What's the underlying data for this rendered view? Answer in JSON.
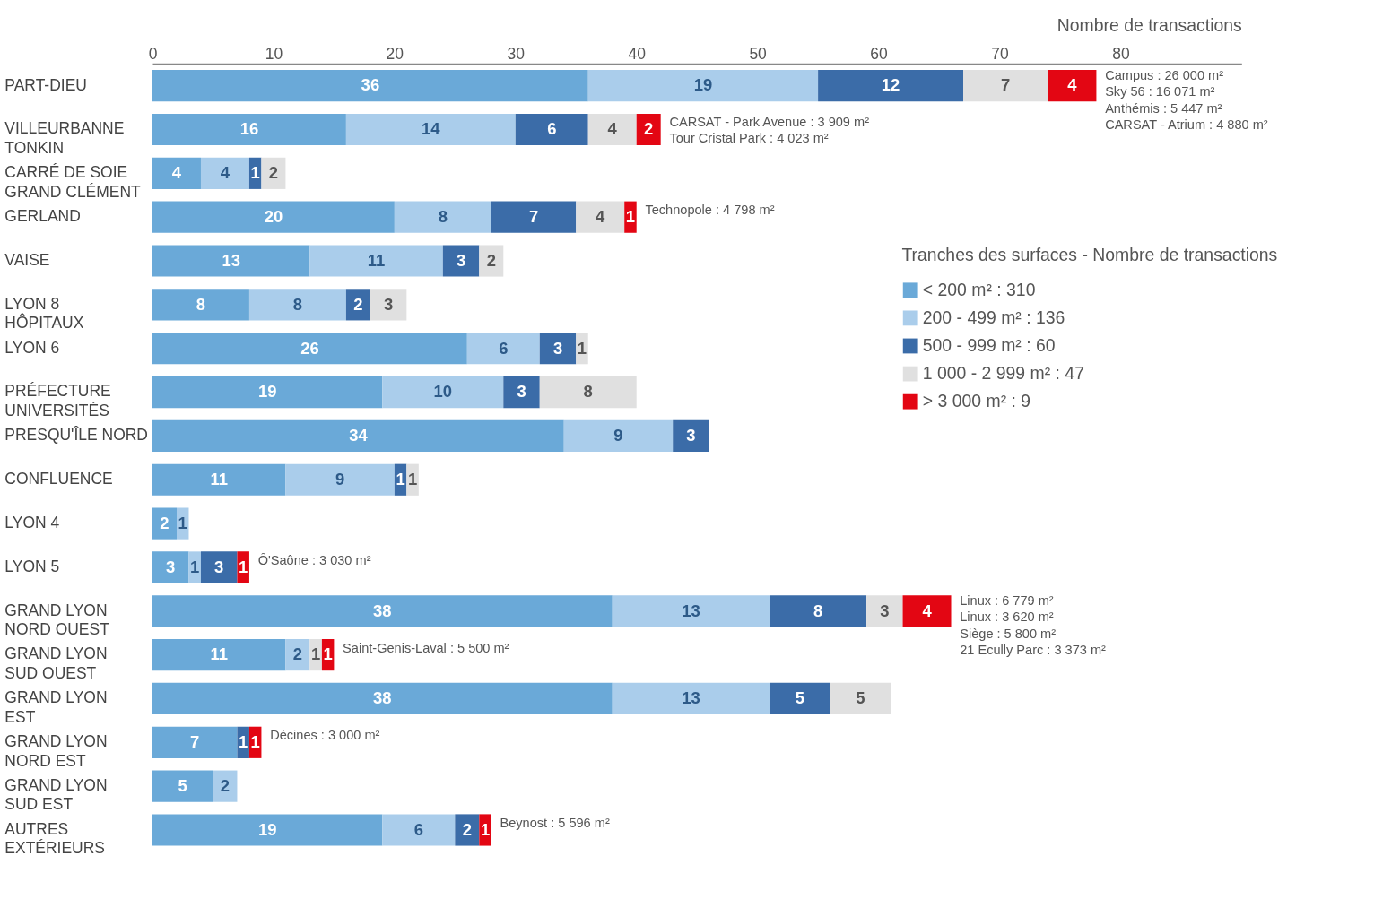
{
  "chart_data": {
    "type": "bar",
    "orientation": "horizontal",
    "stacked": true,
    "data_labels": true,
    "legend": "right",
    "grid": false,
    "xlabel": "Nombre de transactions",
    "legend_title": "Tranches des surfaces - Nombre de transactions",
    "xlim": [
      0,
      90
    ],
    "xticks": [
      0,
      10,
      20,
      30,
      40,
      50,
      60,
      70,
      80
    ],
    "categories": [
      "PART-DIEU",
      "VILLEURBANNE\nTONKIN",
      "CARRÉ DE SOIE\nGRAND CLÉMENT",
      "GERLAND",
      "VAISE",
      "LYON 8\nHÔPITAUX",
      "LYON 6",
      "PRÉFECTURE\nUNIVERSITÉS",
      "PRESQU'ÎLE NORD",
      "CONFLUENCE",
      "LYON 4",
      "LYON 5",
      "GRAND LYON\nNORD OUEST",
      "GRAND LYON\nSUD OUEST",
      "GRAND LYON\nEST",
      "GRAND LYON\nNORD EST",
      "GRAND LYON\nSUD EST",
      "AUTRES\nEXTÉRIEURS"
    ],
    "series": [
      {
        "name": "< 200 m²          : 310",
        "color": "#6aa9d8",
        "values": [
          36,
          16,
          4,
          20,
          13,
          8,
          26,
          19,
          34,
          11,
          2,
          3,
          38,
          11,
          38,
          7,
          5,
          19
        ]
      },
      {
        "name": "200 - 499 m²      : 136",
        "color": "#aacdeb",
        "values": [
          19,
          14,
          4,
          8,
          11,
          8,
          6,
          10,
          9,
          9,
          1,
          1,
          13,
          2,
          13,
          null,
          2,
          6
        ]
      },
      {
        "name": "500 - 999 m²      :   60",
        "color": "#3b6ca8",
        "values": [
          12,
          6,
          1,
          7,
          3,
          2,
          3,
          3,
          3,
          1,
          null,
          3,
          8,
          null,
          5,
          1,
          null,
          2
        ]
      },
      {
        "name": "1 000 - 2 999 m²  :   47",
        "color": "#e0e0e0",
        "values": [
          7,
          4,
          2,
          4,
          2,
          3,
          1,
          8,
          null,
          1,
          null,
          null,
          3,
          1,
          5,
          null,
          null,
          null
        ]
      },
      {
        "name": "> 3 000 m²        :     9",
        "color": "#e30613",
        "values": [
          4,
          2,
          null,
          1,
          null,
          null,
          null,
          null,
          null,
          null,
          null,
          1,
          4,
          1,
          null,
          1,
          null,
          1
        ]
      }
    ],
    "annotations": [
      {
        "text": "Campus : 26 000 m²",
        "x": 78,
        "y": "PART-DIEU"
      },
      {
        "text": "Sky 56 : 16 071 m²",
        "x": 78,
        "y": "PART-DIEU"
      },
      {
        "text": "Anthémis : 5 447 m²",
        "x": 78,
        "y": "PART-DIEU"
      },
      {
        "text": "CARSAT - Atrium : 4 880 m²",
        "x": 78,
        "y": "PART-DIEU"
      },
      {
        "text": "CARSAT - Park Avenue : 3 909 m²",
        "x": 42,
        "y": "VILLEURBANNE\nTONKIN"
      },
      {
        "text": "Tour Cristal Park : 4 023 m²",
        "x": 42,
        "y": "VILLEURBANNE\nTONKIN"
      },
      {
        "text": "Technopole : 4 798 m²",
        "x": 40,
        "y": "GERLAND"
      },
      {
        "text": "Ô'Saône : 3 030 m²",
        "x": 8,
        "y": "LYON 5"
      },
      {
        "text": "Linux : 6 779 m²",
        "x": 66,
        "y": "GRAND LYON\nNORD OUEST"
      },
      {
        "text": "Linux : 3 620 m²",
        "x": 66,
        "y": "GRAND LYON\nNORD OUEST"
      },
      {
        "text": "Siège : 5 800 m²",
        "x": 66,
        "y": "GRAND LYON\nNORD OUEST"
      },
      {
        "text": "21 Ecully Parc : 3 373 m²",
        "x": 66,
        "y": "GRAND LYON\nNORD OUEST"
      },
      {
        "text": "Saint-Genis-Laval : 5 500 m²",
        "x": 15,
        "y": "GRAND LYON\nSUD OUEST"
      },
      {
        "text": "Décines : 3 000 m²",
        "x": 9,
        "y": "GRAND LYON\nNORD EST"
      },
      {
        "text": "Beynost : 5 596 m²",
        "x": 28,
        "y": "AUTRES\nEXTÉRIEURS"
      }
    ]
  }
}
